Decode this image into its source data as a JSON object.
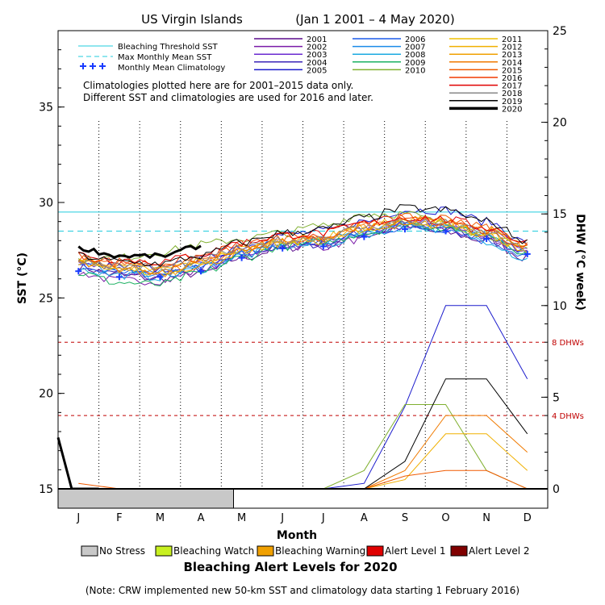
{
  "chart_data": {
    "type": "line",
    "title": "US Virgin Islands",
    "date_range": "(Jan 1 2001 – 4 May 2020)",
    "xlabel": "Month",
    "ylabel_left": "SST (°C)",
    "ylabel_right": "DHW (°C week)",
    "months": [
      "J",
      "F",
      "M",
      "A",
      "M",
      "J",
      "J",
      "A",
      "S",
      "O",
      "N",
      "D"
    ],
    "y_left": {
      "range": [
        15,
        39
      ],
      "ticks": [
        15,
        20,
        25,
        30,
        35
      ]
    },
    "y_right": {
      "range": [
        0,
        25
      ],
      "ticks": [
        0,
        5,
        10,
        15,
        20,
        25
      ]
    },
    "bleaching_threshold_sst": 29.5,
    "max_monthly_mean_sst": 28.5,
    "monthly_mean_climatology": [
      26.4,
      26.1,
      26.1,
      26.4,
      27.1,
      27.6,
      27.7,
      28.2,
      28.6,
      28.5,
      28.1,
      27.3
    ],
    "dhw_reference_lines": [
      {
        "label": "8 DHWs",
        "value": 8
      },
      {
        "label": "4 DHWs",
        "value": 4
      }
    ],
    "reference_legend": [
      {
        "label": "Bleaching Threshold SST",
        "color": "#22ccdd"
      },
      {
        "label": "Max Monthly Mean SST",
        "color": "#22ccdd"
      },
      {
        "label": "Monthly Mean Climatology",
        "color": "#1a3cff"
      }
    ],
    "notes": [
      "Climatologies plotted here are for 2001–2015 data only.",
      "Different SST and climatologies are used for 2016 and later."
    ],
    "series": [
      {
        "name": "2001",
        "color": "#5a0a8c",
        "sst": [
          26.6,
          26.2,
          26.0,
          26.3,
          27.1,
          27.6,
          27.9,
          28.3,
          28.7,
          28.4,
          28.0,
          27.1
        ]
      },
      {
        "name": "2002",
        "color": "#7a1aa8",
        "sst": [
          26.3,
          25.9,
          25.9,
          26.4,
          27.3,
          27.7,
          27.7,
          28.1,
          28.8,
          28.6,
          28.1,
          27.3
        ]
      },
      {
        "name": "2003",
        "color": "#6a2ad0",
        "sst": [
          26.9,
          26.5,
          26.3,
          26.7,
          27.4,
          27.8,
          28.0,
          28.5,
          29.0,
          28.9,
          28.4,
          27.6
        ]
      },
      {
        "name": "2004",
        "color": "#3a24b8",
        "sst": [
          26.5,
          26.2,
          26.1,
          26.6,
          27.2,
          27.7,
          27.8,
          28.4,
          28.9,
          28.6,
          28.2,
          27.4
        ]
      },
      {
        "name": "2005",
        "color": "#1a1acc",
        "sst": [
          26.9,
          26.6,
          26.5,
          27.0,
          27.7,
          28.3,
          28.5,
          29.0,
          29.6,
          29.6,
          29.0,
          27.9
        ],
        "dhw": [
          0,
          0,
          0,
          0,
          0,
          0,
          0,
          0.3,
          4.5,
          10.0,
          10.0,
          6.0
        ]
      },
      {
        "name": "2006",
        "color": "#1a5ae8",
        "sst": [
          26.6,
          26.3,
          26.2,
          26.6,
          27.3,
          27.8,
          27.9,
          28.3,
          28.7,
          28.6,
          28.0,
          27.2
        ]
      },
      {
        "name": "2007",
        "color": "#1a8ae8",
        "sst": [
          26.8,
          26.4,
          26.3,
          26.7,
          27.4,
          27.9,
          28.0,
          28.5,
          28.9,
          28.8,
          28.2,
          27.4
        ]
      },
      {
        "name": "2008",
        "color": "#1aaae0",
        "sst": [
          26.5,
          26.2,
          26.1,
          26.5,
          27.2,
          27.7,
          27.8,
          28.3,
          28.8,
          28.6,
          28.0,
          27.0
        ]
      },
      {
        "name": "2009",
        "color": "#1ab060",
        "sst": [
          26.3,
          25.8,
          25.7,
          26.3,
          27.1,
          27.7,
          27.9,
          28.4,
          28.9,
          28.7,
          28.3,
          27.4
        ]
      },
      {
        "name": "2010",
        "color": "#80b030",
        "sst": [
          27.0,
          27.1,
          27.4,
          27.8,
          28.1,
          28.4,
          28.8,
          29.4,
          29.4,
          28.9,
          28.3,
          27.5
        ],
        "dhw": [
          0,
          0,
          0,
          0,
          0,
          0,
          0,
          1.0,
          4.6,
          4.6,
          1.0,
          0
        ]
      },
      {
        "name": "2011",
        "color": "#f0c000",
        "sst": [
          26.9,
          26.5,
          26.4,
          26.8,
          27.5,
          27.9,
          28.1,
          28.6,
          29.0,
          28.9,
          28.3,
          27.5
        ]
      },
      {
        "name": "2012",
        "color": "#f0b000",
        "sst": [
          27.0,
          26.6,
          26.5,
          26.9,
          27.6,
          28.0,
          28.2,
          28.7,
          29.1,
          29.0,
          28.5,
          27.6
        ],
        "dhw": [
          0,
          0,
          0,
          0,
          0,
          0,
          0,
          0,
          0.5,
          3.0,
          3.0,
          1.0
        ]
      },
      {
        "name": "2013",
        "color": "#f0a000",
        "sst": [
          26.8,
          26.5,
          26.3,
          26.7,
          27.4,
          27.9,
          28.0,
          28.5,
          28.9,
          28.8,
          28.3,
          27.4
        ]
      },
      {
        "name": "2014",
        "color": "#f07a00",
        "sst": [
          26.9,
          26.6,
          26.4,
          26.8,
          27.5,
          28.0,
          28.1,
          28.7,
          29.1,
          29.1,
          28.6,
          27.7
        ],
        "dhw": [
          0,
          0,
          0,
          0,
          0,
          0,
          0,
          0,
          1.0,
          4.0,
          4.0,
          2.0
        ]
      },
      {
        "name": "2015",
        "color": "#f05a00",
        "sst": [
          27.1,
          26.8,
          26.6,
          27.0,
          27.6,
          28.1,
          28.2,
          28.8,
          29.2,
          29.2,
          28.7,
          27.8
        ],
        "dhw": [
          0.3,
          0,
          0,
          0,
          0,
          0,
          0,
          0,
          0.7,
          1.0,
          1.0,
          0
        ]
      },
      {
        "name": "2016",
        "color": "#f03a00",
        "sst": [
          27.2,
          26.9,
          26.8,
          27.2,
          27.8,
          28.2,
          28.4,
          28.9,
          29.2,
          29.0,
          28.5,
          27.7
        ]
      },
      {
        "name": "2017",
        "color": "#e00000",
        "sst": [
          27.3,
          27.0,
          26.9,
          27.3,
          27.9,
          28.3,
          28.4,
          28.9,
          29.2,
          29.1,
          28.7,
          27.9
        ]
      },
      {
        "name": "2018",
        "color": "#888888",
        "sst": [
          27.0,
          26.7,
          26.6,
          27.0,
          27.6,
          28.0,
          28.2,
          28.7,
          29.0,
          28.9,
          28.4,
          27.5
        ]
      },
      {
        "name": "2019",
        "color": "#000000",
        "sst": [
          27.2,
          26.9,
          26.8,
          27.2,
          27.9,
          28.4,
          28.6,
          29.2,
          29.7,
          29.6,
          29.0,
          28.0
        ],
        "dhw": [
          0,
          0,
          0,
          0,
          0,
          0,
          0,
          0,
          1.5,
          6.0,
          6.0,
          3.0
        ]
      },
      {
        "name": "2020",
        "color": "#000000",
        "bold": true,
        "sst": [
          27.6,
          27.2,
          27.2,
          27.7
        ],
        "dhw": [
          2.8,
          0,
          0,
          0
        ]
      }
    ],
    "alert_levels": {
      "title": "Bleaching Alert Levels for 2020",
      "items": [
        {
          "label": "No Stress",
          "color": "#c8c8c8"
        },
        {
          "label": "Bleaching Watch",
          "color": "#c8f020"
        },
        {
          "label": "Bleaching Warning",
          "color": "#f0a000"
        },
        {
          "label": "Alert Level 1",
          "color": "#e00000"
        },
        {
          "label": "Alert Level 2",
          "color": "#800000"
        }
      ],
      "no_stress_through_month": 4.3
    },
    "footnote": "(Note: CRW implemented new 50-km SST and climatology data starting 1 February 2016)"
  }
}
